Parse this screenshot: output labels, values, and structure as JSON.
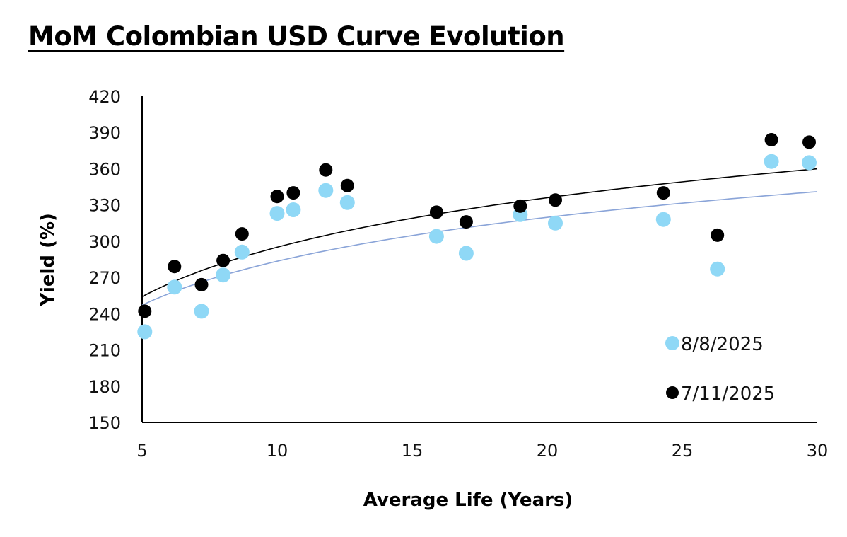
{
  "title": "MoM Colombian USD Curve Evolution",
  "chart_data": {
    "type": "scatter",
    "title": "MoM Colombian USD Curve Evolution",
    "xlabel": "Average Life (Years)",
    "ylabel": "Yield (%)",
    "xlim": [
      5,
      30
    ],
    "ylim": [
      150,
      420
    ],
    "x_ticks": [
      "5",
      "10",
      "15",
      "20",
      "25",
      "30"
    ],
    "y_ticks": [
      "150",
      "180",
      "210",
      "240",
      "270",
      "300",
      "330",
      "360",
      "390",
      "420"
    ],
    "legend_position": "bottom-right",
    "grid": false,
    "trendline": "logarithmic",
    "series": [
      {
        "name": "8/8/2025",
        "color": "#8fd8f6",
        "points": [
          [
            5.1,
            225
          ],
          [
            6.2,
            262
          ],
          [
            7.2,
            242
          ],
          [
            8.0,
            272
          ],
          [
            8.7,
            291
          ],
          [
            10.0,
            323
          ],
          [
            10.6,
            326
          ],
          [
            11.8,
            342
          ],
          [
            12.6,
            332
          ],
          [
            15.9,
            304
          ],
          [
            17.0,
            290
          ],
          [
            19.0,
            322
          ],
          [
            20.3,
            315
          ],
          [
            24.3,
            318
          ],
          [
            26.3,
            277
          ],
          [
            28.3,
            366
          ],
          [
            29.7,
            365
          ]
        ],
        "trend": {
          "a": 162.68,
          "b": 52.43
        }
      },
      {
        "name": "7/11/2025",
        "color": "#000000",
        "points": [
          [
            5.1,
            242
          ],
          [
            6.2,
            279
          ],
          [
            7.2,
            264
          ],
          [
            8.0,
            284
          ],
          [
            8.7,
            306
          ],
          [
            10.0,
            337
          ],
          [
            10.6,
            340
          ],
          [
            11.8,
            359
          ],
          [
            12.6,
            346
          ],
          [
            15.9,
            324
          ],
          [
            17.0,
            316
          ],
          [
            19.0,
            329
          ],
          [
            20.3,
            334
          ],
          [
            24.3,
            340
          ],
          [
            26.3,
            305
          ],
          [
            28.3,
            384
          ],
          [
            29.7,
            382
          ]
        ],
        "trend": {
          "a": 159.0,
          "b": 59.07
        }
      }
    ]
  }
}
